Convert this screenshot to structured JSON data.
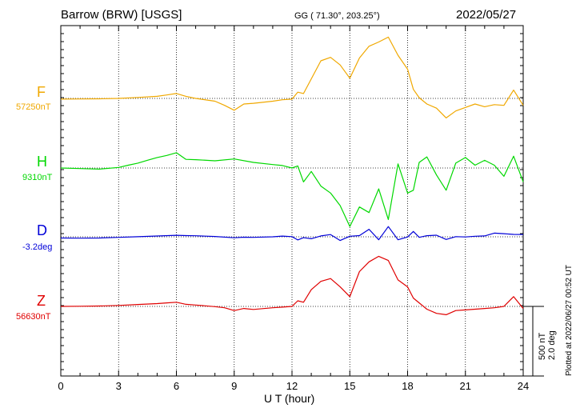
{
  "header": {
    "station": "Barrow (BRW)  [USGS]",
    "coords": "GG ( 71.30°, 203.25°)",
    "date": "2022/05/27"
  },
  "footer": {
    "plotted": "Plotted at 2022/06/27 00:52 UT",
    "scale_nt": "500 nT",
    "scale_deg": "2.0 deg"
  },
  "chart_data": {
    "type": "line",
    "xlabel": "U T (hour)",
    "xlim": [
      0,
      24
    ],
    "xticks": [
      0,
      3,
      6,
      9,
      12,
      15,
      18,
      21,
      24
    ],
    "scale": {
      "nT_per_bar": 500,
      "deg_per_bar": 2.0
    },
    "grid": true,
    "series": [
      {
        "name": "F",
        "baseline_label": "57250nT",
        "unit": "nT",
        "baseline": 57250,
        "color": "#f0a800",
        "x": [
          0,
          1,
          2,
          3,
          4,
          5,
          5.5,
          6,
          6.5,
          7,
          8,
          8.5,
          9,
          9.5,
          10,
          11,
          11.5,
          12,
          12.3,
          12.6,
          13,
          13.5,
          14,
          14.5,
          15,
          15.5,
          16,
          16.5,
          17,
          17.5,
          18,
          18.3,
          18.6,
          19,
          19.5,
          20,
          20.5,
          21,
          21.5,
          22,
          22.5,
          23,
          23.5,
          24
        ],
        "y": [
          57245,
          57246,
          57247,
          57250,
          57257,
          57265,
          57275,
          57285,
          57265,
          57250,
          57230,
          57200,
          57165,
          57210,
          57215,
          57230,
          57240,
          57245,
          57295,
          57285,
          57390,
          57520,
          57545,
          57490,
          57395,
          57540,
          57625,
          57655,
          57690,
          57560,
          57460,
          57315,
          57255,
          57210,
          57180,
          57110,
          57160,
          57185,
          57210,
          57190,
          57205,
          57200,
          57310,
          57200
        ]
      },
      {
        "name": "H",
        "baseline_label": "9310nT",
        "unit": "nT",
        "baseline": 9310,
        "color": "#00d800",
        "x": [
          0,
          1,
          2,
          3,
          3.5,
          4,
          4.5,
          5,
          5.5,
          6,
          6.5,
          7,
          8,
          9,
          10,
          11,
          11.5,
          12,
          12.3,
          12.6,
          13,
          13.5,
          14,
          14.5,
          15,
          15.5,
          16,
          16.5,
          17,
          17.5,
          18,
          18.3,
          18.6,
          19,
          19.5,
          20,
          20.5,
          21,
          21.5,
          22,
          22.5,
          23,
          23.5,
          24
        ],
        "y": [
          9310,
          9306,
          9302,
          9314,
          9330,
          9345,
          9366,
          9385,
          9400,
          9420,
          9372,
          9370,
          9362,
          9375,
          9350,
          9335,
          9328,
          9310,
          9325,
          9210,
          9285,
          9180,
          9130,
          9040,
          8890,
          9030,
          8990,
          9160,
          8940,
          9340,
          9130,
          9150,
          9350,
          9390,
          9260,
          9150,
          9345,
          9385,
          9330,
          9365,
          9330,
          9250,
          9395,
          9210
        ]
      },
      {
        "name": "D",
        "baseline_label": "-3.2deg",
        "unit": "deg",
        "baseline": -3.2,
        "color": "#0000d8",
        "x": [
          0,
          1,
          2,
          3,
          4,
          5,
          6,
          6.5,
          7,
          8,
          9,
          9.5,
          10,
          11,
          11.5,
          12,
          12.3,
          12.6,
          13,
          13.5,
          14,
          14.5,
          15,
          15.5,
          16,
          16.5,
          17,
          17.5,
          18,
          18.3,
          18.6,
          19,
          19.5,
          20,
          20.5,
          21,
          21.5,
          22,
          22.5,
          23,
          23.5,
          24
        ],
        "y": [
          -3.234,
          -3.238,
          -3.235,
          -3.215,
          -3.198,
          -3.178,
          -3.157,
          -3.165,
          -3.17,
          -3.19,
          -3.228,
          -3.212,
          -3.215,
          -3.199,
          -3.18,
          -3.196,
          -3.29,
          -3.225,
          -3.255,
          -3.175,
          -3.135,
          -3.305,
          -3.185,
          -3.165,
          -2.985,
          -3.285,
          -2.905,
          -3.285,
          -3.205,
          -3.045,
          -3.215,
          -3.168,
          -3.155,
          -3.275,
          -3.195,
          -3.205,
          -3.185,
          -3.175,
          -3.095,
          -3.11,
          -3.13,
          -3.135
        ]
      },
      {
        "name": "Z",
        "baseline_label": "56630nT",
        "unit": "nT",
        "baseline": 56630,
        "color": "#e00000",
        "x": [
          0,
          1,
          2,
          3,
          4,
          5,
          5.5,
          6,
          6.5,
          7,
          8,
          8.5,
          9,
          9.5,
          10,
          11,
          11.5,
          12,
          12.3,
          12.6,
          13,
          13.5,
          14,
          14.5,
          15,
          15.5,
          16,
          16.5,
          17,
          17.5,
          18,
          18.3,
          18.6,
          19,
          19.5,
          20,
          20.5,
          21,
          21.5,
          22,
          22.5,
          23,
          23.5,
          24
        ],
        "y": [
          56630,
          56631,
          56633,
          56637,
          56644,
          56650,
          56655,
          56660,
          56645,
          56640,
          56628,
          56620,
          56600,
          56615,
          56608,
          56620,
          56625,
          56630,
          56670,
          56660,
          56750,
          56810,
          56830,
          56770,
          56700,
          56880,
          56950,
          56990,
          56960,
          56820,
          56770,
          56690,
          56655,
          56610,
          56580,
          56570,
          56600,
          56605,
          56610,
          56615,
          56620,
          56630,
          56700,
          56615
        ]
      }
    ]
  }
}
